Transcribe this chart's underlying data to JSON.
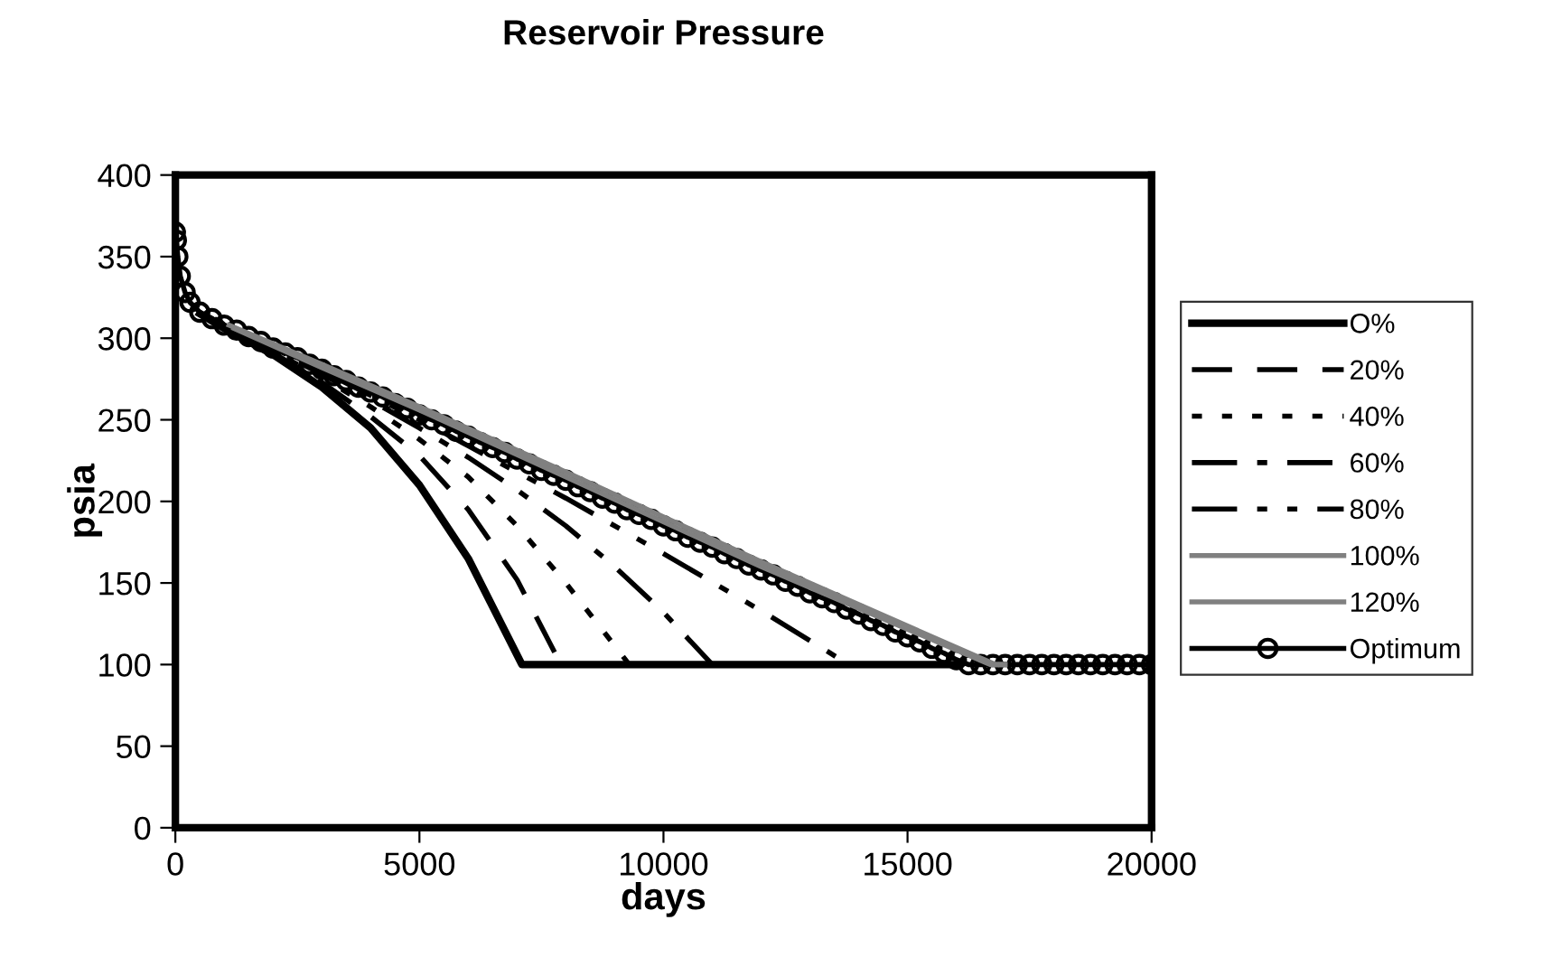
{
  "chart_data": {
    "type": "line",
    "title": "Reservoir Pressure",
    "xlabel": "days",
    "ylabel": "psia",
    "xlim": [
      0,
      20000
    ],
    "xticks": [
      0,
      5000,
      10000,
      15000,
      20000
    ],
    "ylim": [
      0,
      400
    ],
    "yticks": [
      0,
      50,
      100,
      150,
      200,
      250,
      300,
      350,
      400
    ],
    "grid": false,
    "legend": "right",
    "series": [
      {
        "name": "O%",
        "color": "#000000",
        "line_style": "solid",
        "marker": "none",
        "x": [
          500,
          1000,
          2000,
          3000,
          4000,
          5000,
          6000,
          7100,
          16000
        ],
        "values": [
          315,
          306,
          290,
          270,
          245,
          210,
          165,
          100,
          100
        ]
      },
      {
        "name": "20%",
        "color": "#000000",
        "line_style": "dashed",
        "marker": "none",
        "x": [
          600,
          1000,
          2000,
          3000,
          4000,
          5000,
          6000,
          7000,
          7900,
          15800
        ],
        "values": [
          314,
          307,
          291,
          273,
          252,
          228,
          195,
          152,
          100,
          100
        ]
      },
      {
        "name": "40%",
        "color": "#000000",
        "line_style": "dotted",
        "marker": "none",
        "x": [
          700,
          1000,
          2000,
          3000,
          4000,
          5000,
          6000,
          7000,
          8000,
          9300,
          15600
        ],
        "values": [
          313,
          307,
          292,
          276,
          258,
          238,
          215,
          185,
          150,
          100,
          100
        ]
      },
      {
        "name": "60%",
        "color": "#000000",
        "line_style": "dashdot",
        "marker": "none",
        "x": [
          800,
          1000,
          2000,
          3000,
          4000,
          5000,
          6000,
          7000,
          8000,
          9000,
          10000,
          11000,
          15400
        ],
        "values": [
          312,
          308,
          293,
          278,
          262,
          245,
          227,
          207,
          185,
          160,
          132,
          100,
          100
        ]
      },
      {
        "name": "80%",
        "color": "#000000",
        "line_style": "dashdotdot",
        "marker": "none",
        "x": [
          900,
          1000,
          2000,
          3000,
          4000,
          5000,
          6000,
          8000,
          10000,
          12000,
          13800,
          15200
        ],
        "values": [
          311,
          308,
          294,
          280,
          265,
          250,
          234,
          202,
          168,
          133,
          100,
          100
        ]
      },
      {
        "name": "100%",
        "color": "#808080",
        "line_style": "solid",
        "marker": "none",
        "x": [
          1100,
          3000,
          5000,
          8000,
          12000,
          16800,
          17000
        ],
        "values": [
          308,
          284,
          258,
          218,
          163,
          100,
          100
        ]
      },
      {
        "name": "120%",
        "color": "#808080",
        "line_style": "solid",
        "marker": "none",
        "x": [
          1200,
          3000,
          5000,
          8000,
          12000,
          16700,
          16900
        ],
        "values": [
          306,
          282,
          256,
          215,
          160,
          100,
          100
        ]
      },
      {
        "name": "Optimum",
        "color": "#000000",
        "line_style": "solid",
        "marker": "circle",
        "x": [
          0,
          20,
          50,
          100,
          200,
          300,
          500,
          750,
          1000,
          1250,
          1500,
          1750,
          2000,
          2250,
          2500,
          2750,
          3000,
          3250,
          3500,
          3750,
          4000,
          4250,
          4500,
          4750,
          5000,
          5250,
          5500,
          5750,
          6000,
          6250,
          6500,
          6750,
          7000,
          7250,
          7500,
          7750,
          8000,
          8250,
          8500,
          8750,
          9000,
          9250,
          9500,
          9750,
          10000,
          10250,
          10500,
          10750,
          11000,
          11250,
          11500,
          11750,
          12000,
          12250,
          12500,
          12750,
          13000,
          13250,
          13500,
          13750,
          14000,
          14250,
          14500,
          14750,
          15000,
          15250,
          15500,
          15750,
          16000,
          16250,
          16500,
          16750,
          17000,
          17250,
          17500,
          17750,
          18000,
          18250,
          18500,
          18750,
          19000,
          19250,
          19500,
          19750,
          20000
        ],
        "values": [
          365,
          360,
          350,
          338,
          328,
          322,
          316,
          312,
          308,
          305,
          301,
          298,
          294,
          291,
          288,
          284,
          281,
          277,
          274,
          270,
          267,
          264,
          260,
          257,
          253,
          250,
          247,
          243,
          240,
          236,
          233,
          230,
          226,
          223,
          219,
          216,
          213,
          209,
          206,
          202,
          199,
          195,
          192,
          189,
          185,
          182,
          178,
          175,
          172,
          168,
          165,
          161,
          158,
          155,
          151,
          148,
          144,
          141,
          138,
          134,
          131,
          127,
          124,
          120,
          117,
          114,
          110,
          107,
          103,
          100,
          100,
          100,
          100,
          100,
          100,
          100,
          100,
          100,
          100,
          100,
          100,
          100,
          100,
          100,
          100
        ]
      }
    ]
  }
}
